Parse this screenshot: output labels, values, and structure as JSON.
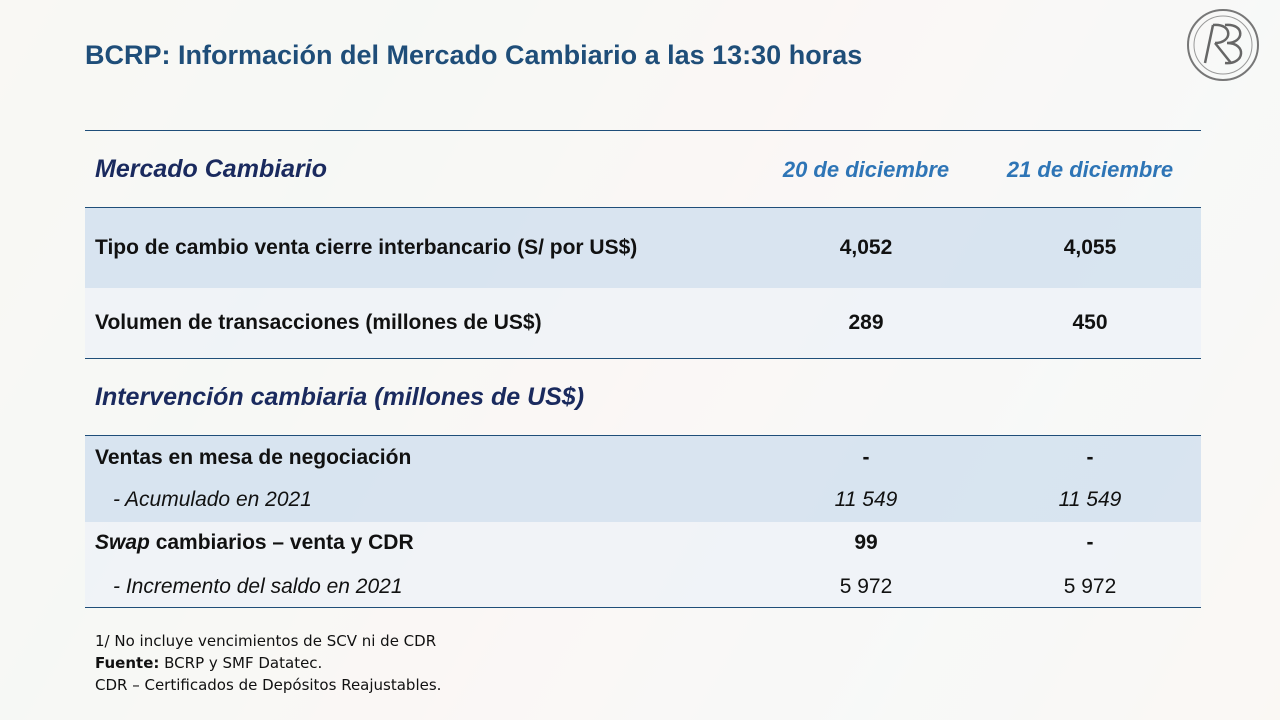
{
  "header": {
    "title": "BCRP: Información del Mercado Cambiario a las 13:30 horas"
  },
  "table": {
    "columns": [
      "20 de diciembre",
      "21 de diciembre"
    ],
    "sections": [
      {
        "title": "Mercado Cambiario",
        "rows": [
          {
            "label": "Tipo de cambio venta cierre interbancario (S/ por US$)",
            "values": [
              "4,052",
              "4,055"
            ]
          },
          {
            "label": "Volumen de transacciones (millones de US$)",
            "values": [
              "289",
              "450"
            ]
          }
        ]
      },
      {
        "title": "Intervención cambiaria (millones de US$)",
        "rows": [
          {
            "label": "Ventas en mesa de negociación",
            "values": [
              "-",
              "-"
            ]
          },
          {
            "label": "-  Acumulado en 2021",
            "values": [
              "11 549",
              "11 549"
            ]
          },
          {
            "label": [
              "Swap",
              " cambiarios – venta y CDR"
            ],
            "values": [
              "99",
              "-"
            ]
          },
          {
            "label": "-  Incremento del saldo en 2021",
            "values": [
              "5 972",
              "5 972"
            ]
          }
        ]
      }
    ]
  },
  "notes": [
    "1/ No incluye vencimientos de SCV ni de CDR",
    [
      "Fuente:",
      " BCRP y SMF Datatec."
    ],
    "CDR – Certificados de Depósitos Reajustables."
  ]
}
